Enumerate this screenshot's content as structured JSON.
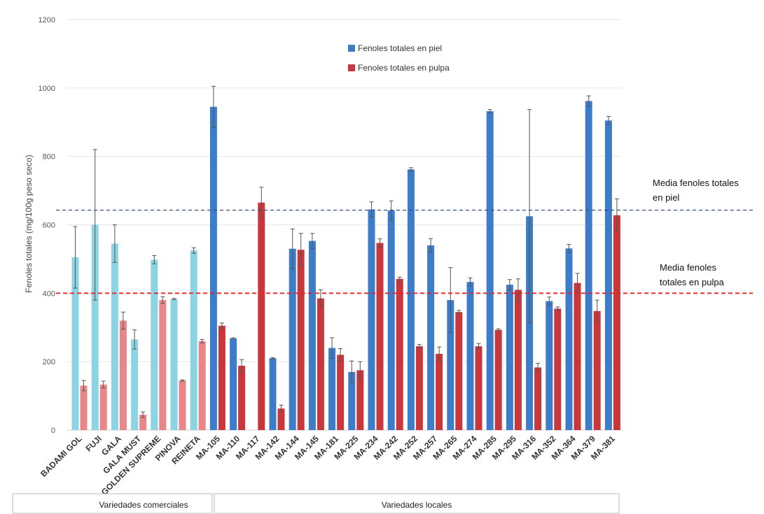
{
  "chart_data": {
    "type": "bar",
    "ylabel": "Fenoles totales (mg/100g peso seco)",
    "ylim": [
      0,
      1200
    ],
    "yticks": [
      0,
      200,
      400,
      600,
      800,
      1000,
      1200
    ],
    "grid": true,
    "legend_position": "top-center",
    "categories": [
      "BADAMI GOL",
      "FUJI",
      "GALA",
      "GALA MUST",
      "GOLDEN SUPREME",
      "PINOVA",
      "REINETA",
      "MA-105",
      "MA-110",
      "MA-117",
      "MA-142",
      "MA-144",
      "MA-145",
      "MA-181",
      "MA-225",
      "MA-234",
      "MA-242",
      "MA-252",
      "MA-257",
      "MA-265",
      "MA-274",
      "MA-285",
      "MA-295",
      "MA-316",
      "MA-352",
      "MA-364",
      "MA-379",
      "MA-381"
    ],
    "series": [
      {
        "name": "Fenoles totales en piel",
        "values": [
          505,
          600,
          545,
          265,
          498,
          383,
          525,
          945,
          268,
          null,
          210,
          530,
          553,
          240,
          170,
          645,
          642,
          762,
          540,
          380,
          433,
          932,
          425,
          625,
          377,
          531,
          962,
          905
        ],
        "errors": [
          90,
          220,
          55,
          28,
          12,
          2,
          8,
          60,
          2,
          null,
          2,
          58,
          22,
          30,
          32,
          22,
          28,
          5,
          20,
          95,
          12,
          5,
          15,
          312,
          12,
          12,
          15,
          12
        ]
      },
      {
        "name": "Fenoles totales en pulpa",
        "values": [
          130,
          133,
          320,
          45,
          380,
          145,
          260,
          305,
          188,
          665,
          63,
          527,
          385,
          220,
          175,
          547,
          442,
          245,
          223,
          345,
          245,
          293,
          410,
          183,
          355,
          430,
          348,
          628
        ],
        "errors": [
          15,
          10,
          25,
          8,
          10,
          2,
          5,
          8,
          18,
          45,
          10,
          48,
          25,
          18,
          25,
          12,
          5,
          5,
          20,
          5,
          8,
          3,
          32,
          12,
          5,
          28,
          32,
          48
        ]
      }
    ],
    "colors": {
      "piel_local": "#3d7cc9",
      "piel_comercial": "#8cd3e3",
      "pulpa_local": "#c8373b",
      "pulpa_comercial": "#e8868a"
    },
    "reference_lines": [
      {
        "label": "Media fenoles totales en piel",
        "value": 643,
        "color": "#2f4f7f"
      },
      {
        "label": "Media fenoles totales en pulpa",
        "value": 400,
        "color": "#e8222b"
      }
    ],
    "annotations": {
      "piel_line1": "Media fenoles totales",
      "piel_line2": "en piel",
      "pulpa_line1": "Media fenoles",
      "pulpa_line2": "totales en pulpa"
    },
    "groups": [
      {
        "label": "Variedades comerciales",
        "count": 7
      },
      {
        "label": "Variedades locales",
        "count": 21
      }
    ]
  }
}
